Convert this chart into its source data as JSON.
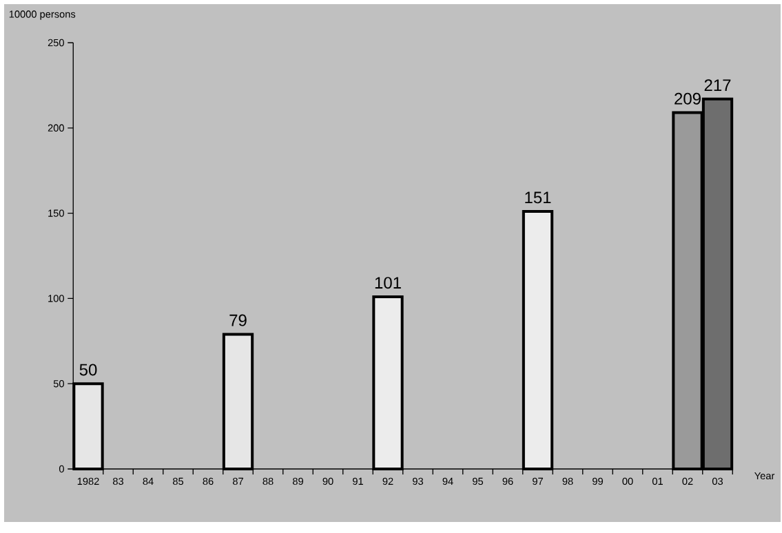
{
  "chart_data": {
    "type": "bar",
    "xlabel": "Year",
    "ylabel": "10000 persons",
    "categories": [
      "1982",
      "83",
      "84",
      "85",
      "86",
      "87",
      "88",
      "89",
      "90",
      "91",
      "92",
      "93",
      "94",
      "95",
      "96",
      "97",
      "98",
      "99",
      "00",
      "01",
      "02",
      "03"
    ],
    "values": [
      50,
      null,
      null,
      null,
      null,
      79,
      null,
      null,
      null,
      null,
      101,
      null,
      null,
      null,
      null,
      151,
      null,
      null,
      null,
      null,
      209,
      217
    ],
    "colors": [
      "#e6e6e6",
      null,
      null,
      null,
      null,
      "#e6e6e6",
      null,
      null,
      null,
      null,
      "#ececec",
      null,
      null,
      null,
      null,
      "#ececec",
      null,
      null,
      null,
      null,
      "#9a9a9a",
      "#6e6e6e"
    ],
    "ylim": [
      0,
      250
    ],
    "yticks": [
      0,
      50,
      100,
      150,
      200,
      250
    ],
    "data_labels": true
  }
}
